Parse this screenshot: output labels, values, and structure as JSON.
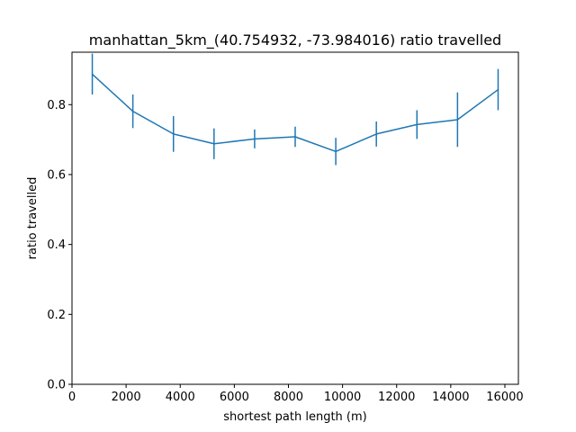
{
  "chart_data": {
    "type": "line",
    "title": "manhattan_5km_(40.754932, -73.984016) ratio travelled",
    "xlabel": "shortest path length (m)",
    "ylabel": "ratio travelled",
    "xlim": [
      0,
      16500
    ],
    "ylim": [
      0,
      0.95
    ],
    "xticks": [
      0,
      2000,
      4000,
      6000,
      8000,
      10000,
      12000,
      14000,
      16000
    ],
    "xtick_labels": [
      "0",
      "2000",
      "4000",
      "6000",
      "8000",
      "10000",
      "12000",
      "14000",
      "16000"
    ],
    "yticks": [
      0.0,
      0.2,
      0.4,
      0.6,
      0.8
    ],
    "ytick_labels": [
      "0.0",
      "0.2",
      "0.4",
      "0.6",
      "0.8"
    ],
    "grid": false,
    "series": [
      {
        "color": "#1f77b4",
        "x": [
          750,
          2250,
          3750,
          5250,
          6750,
          8250,
          9750,
          11250,
          12750,
          14250,
          15750
        ],
        "y": [
          0.887,
          0.781,
          0.716,
          0.688,
          0.702,
          0.708,
          0.666,
          0.716,
          0.743,
          0.757,
          0.843
        ],
        "yerr_low": [
          0.829,
          0.733,
          0.665,
          0.644,
          0.675,
          0.679,
          0.627,
          0.68,
          0.702,
          0.679,
          0.784
        ],
        "yerr_high": [
          0.946,
          0.829,
          0.767,
          0.732,
          0.729,
          0.737,
          0.705,
          0.752,
          0.784,
          0.835,
          0.902
        ]
      }
    ]
  }
}
